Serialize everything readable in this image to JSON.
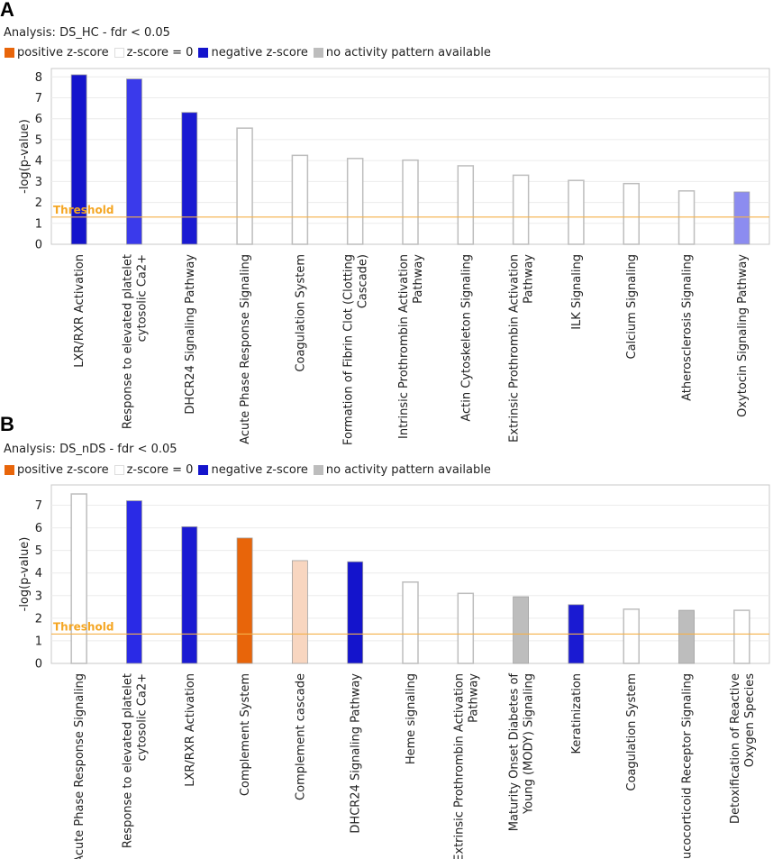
{
  "panels": [
    {
      "letter": "A",
      "analysis": "Analysis: DS_HC - fdr < 0.05",
      "legend": [
        {
          "label": "positive z-score",
          "color": "#e8650a",
          "outline": false
        },
        {
          "label": "z-score = 0",
          "color": "#ffffff",
          "outline": true
        },
        {
          "label": "negative z-score",
          "color": "#1414cc",
          "outline": false
        },
        {
          "label": "no activity pattern available",
          "color": "#bdbdbd",
          "outline": false
        }
      ]
    },
    {
      "letter": "B",
      "analysis": "Analysis: DS_nDS - fdr < 0.05",
      "legend": [
        {
          "label": "positive z-score",
          "color": "#e8650a",
          "outline": false
        },
        {
          "label": "z-score = 0",
          "color": "#ffffff",
          "outline": true
        },
        {
          "label": "negative z-score",
          "color": "#1414cc",
          "outline": false
        },
        {
          "label": "no activity pattern available",
          "color": "#bdbdbd",
          "outline": false
        }
      ]
    }
  ],
  "chart_data": [
    {
      "type": "bar",
      "title": "Analysis: DS_HC - fdr < 0.05",
      "ylabel": "-log(p-value)",
      "xlabel": "",
      "ylim": [
        0,
        8.4
      ],
      "yticks": [
        0,
        1,
        2,
        3,
        4,
        5,
        6,
        7,
        8
      ],
      "threshold": {
        "label": "Threshold",
        "value": 1.3
      },
      "categories": [
        "LXR/RXR Activation",
        "Response to elevated platelet|cytosolic Ca2+",
        "DHCR24 Signaling Pathway",
        "Acute Phase Response Signaling",
        "Coagulation System",
        "Formation of Fibrin Clot (Clotting|Cascade)",
        "Intrinsic Prothrombin Activation|Pathway",
        "Actin Cytoskeleton Signaling",
        "Extrinsic Prothrombin Activation|Pathway",
        "ILK Signaling",
        "Calcium Signaling",
        "Atherosclerosis Signaling",
        "Oxytocin Signaling Pathway"
      ],
      "values": [
        8.1,
        7.9,
        6.3,
        5.55,
        4.25,
        4.1,
        4.02,
        3.75,
        3.3,
        3.05,
        2.9,
        2.55,
        2.5
      ],
      "colors": [
        "#1414cc",
        "#3a3aeb",
        "#1a1ad2",
        "#ffffff",
        "#ffffff",
        "#ffffff",
        "#ffffff",
        "#ffffff",
        "#ffffff",
        "#ffffff",
        "#ffffff",
        "#ffffff",
        "#8c8cf0"
      ]
    },
    {
      "type": "bar",
      "title": "Analysis: DS_nDS - fdr < 0.05",
      "ylabel": "-log(p-value)",
      "xlabel": "",
      "ylim": [
        0,
        7.9
      ],
      "yticks": [
        0,
        1,
        2,
        3,
        4,
        5,
        6,
        7
      ],
      "threshold": {
        "label": "Threshold",
        "value": 1.3
      },
      "categories": [
        "Acute Phase Response Signaling",
        "Response to elevated platelet|cytosolic Ca2+",
        "LXR/RXR Activation",
        "Complement System",
        "Complement cascade",
        "DHCR24 Signaling Pathway",
        "Heme signaling",
        "Extrinsic Prothrombin Activation|Pathway",
        "Maturity Onset Diabetes of|Young (MODY) Signaling",
        "Keratinization",
        "Coagulation System",
        "Glucocorticoid Receptor Signaling",
        "Detoxification of Reactive|Oxygen Species"
      ],
      "values": [
        7.5,
        7.2,
        6.05,
        5.55,
        4.55,
        4.5,
        3.6,
        3.1,
        2.95,
        2.6,
        2.4,
        2.35,
        2.35
      ],
      "colors": [
        "#ffffff",
        "#2a2ae6",
        "#1a1ad2",
        "#e8650a",
        "#f8d6c0",
        "#1414cc",
        "#ffffff",
        "#ffffff",
        "#bdbdbd",
        "#1a1ad2",
        "#ffffff",
        "#bdbdbd",
        "#ffffff"
      ]
    }
  ]
}
